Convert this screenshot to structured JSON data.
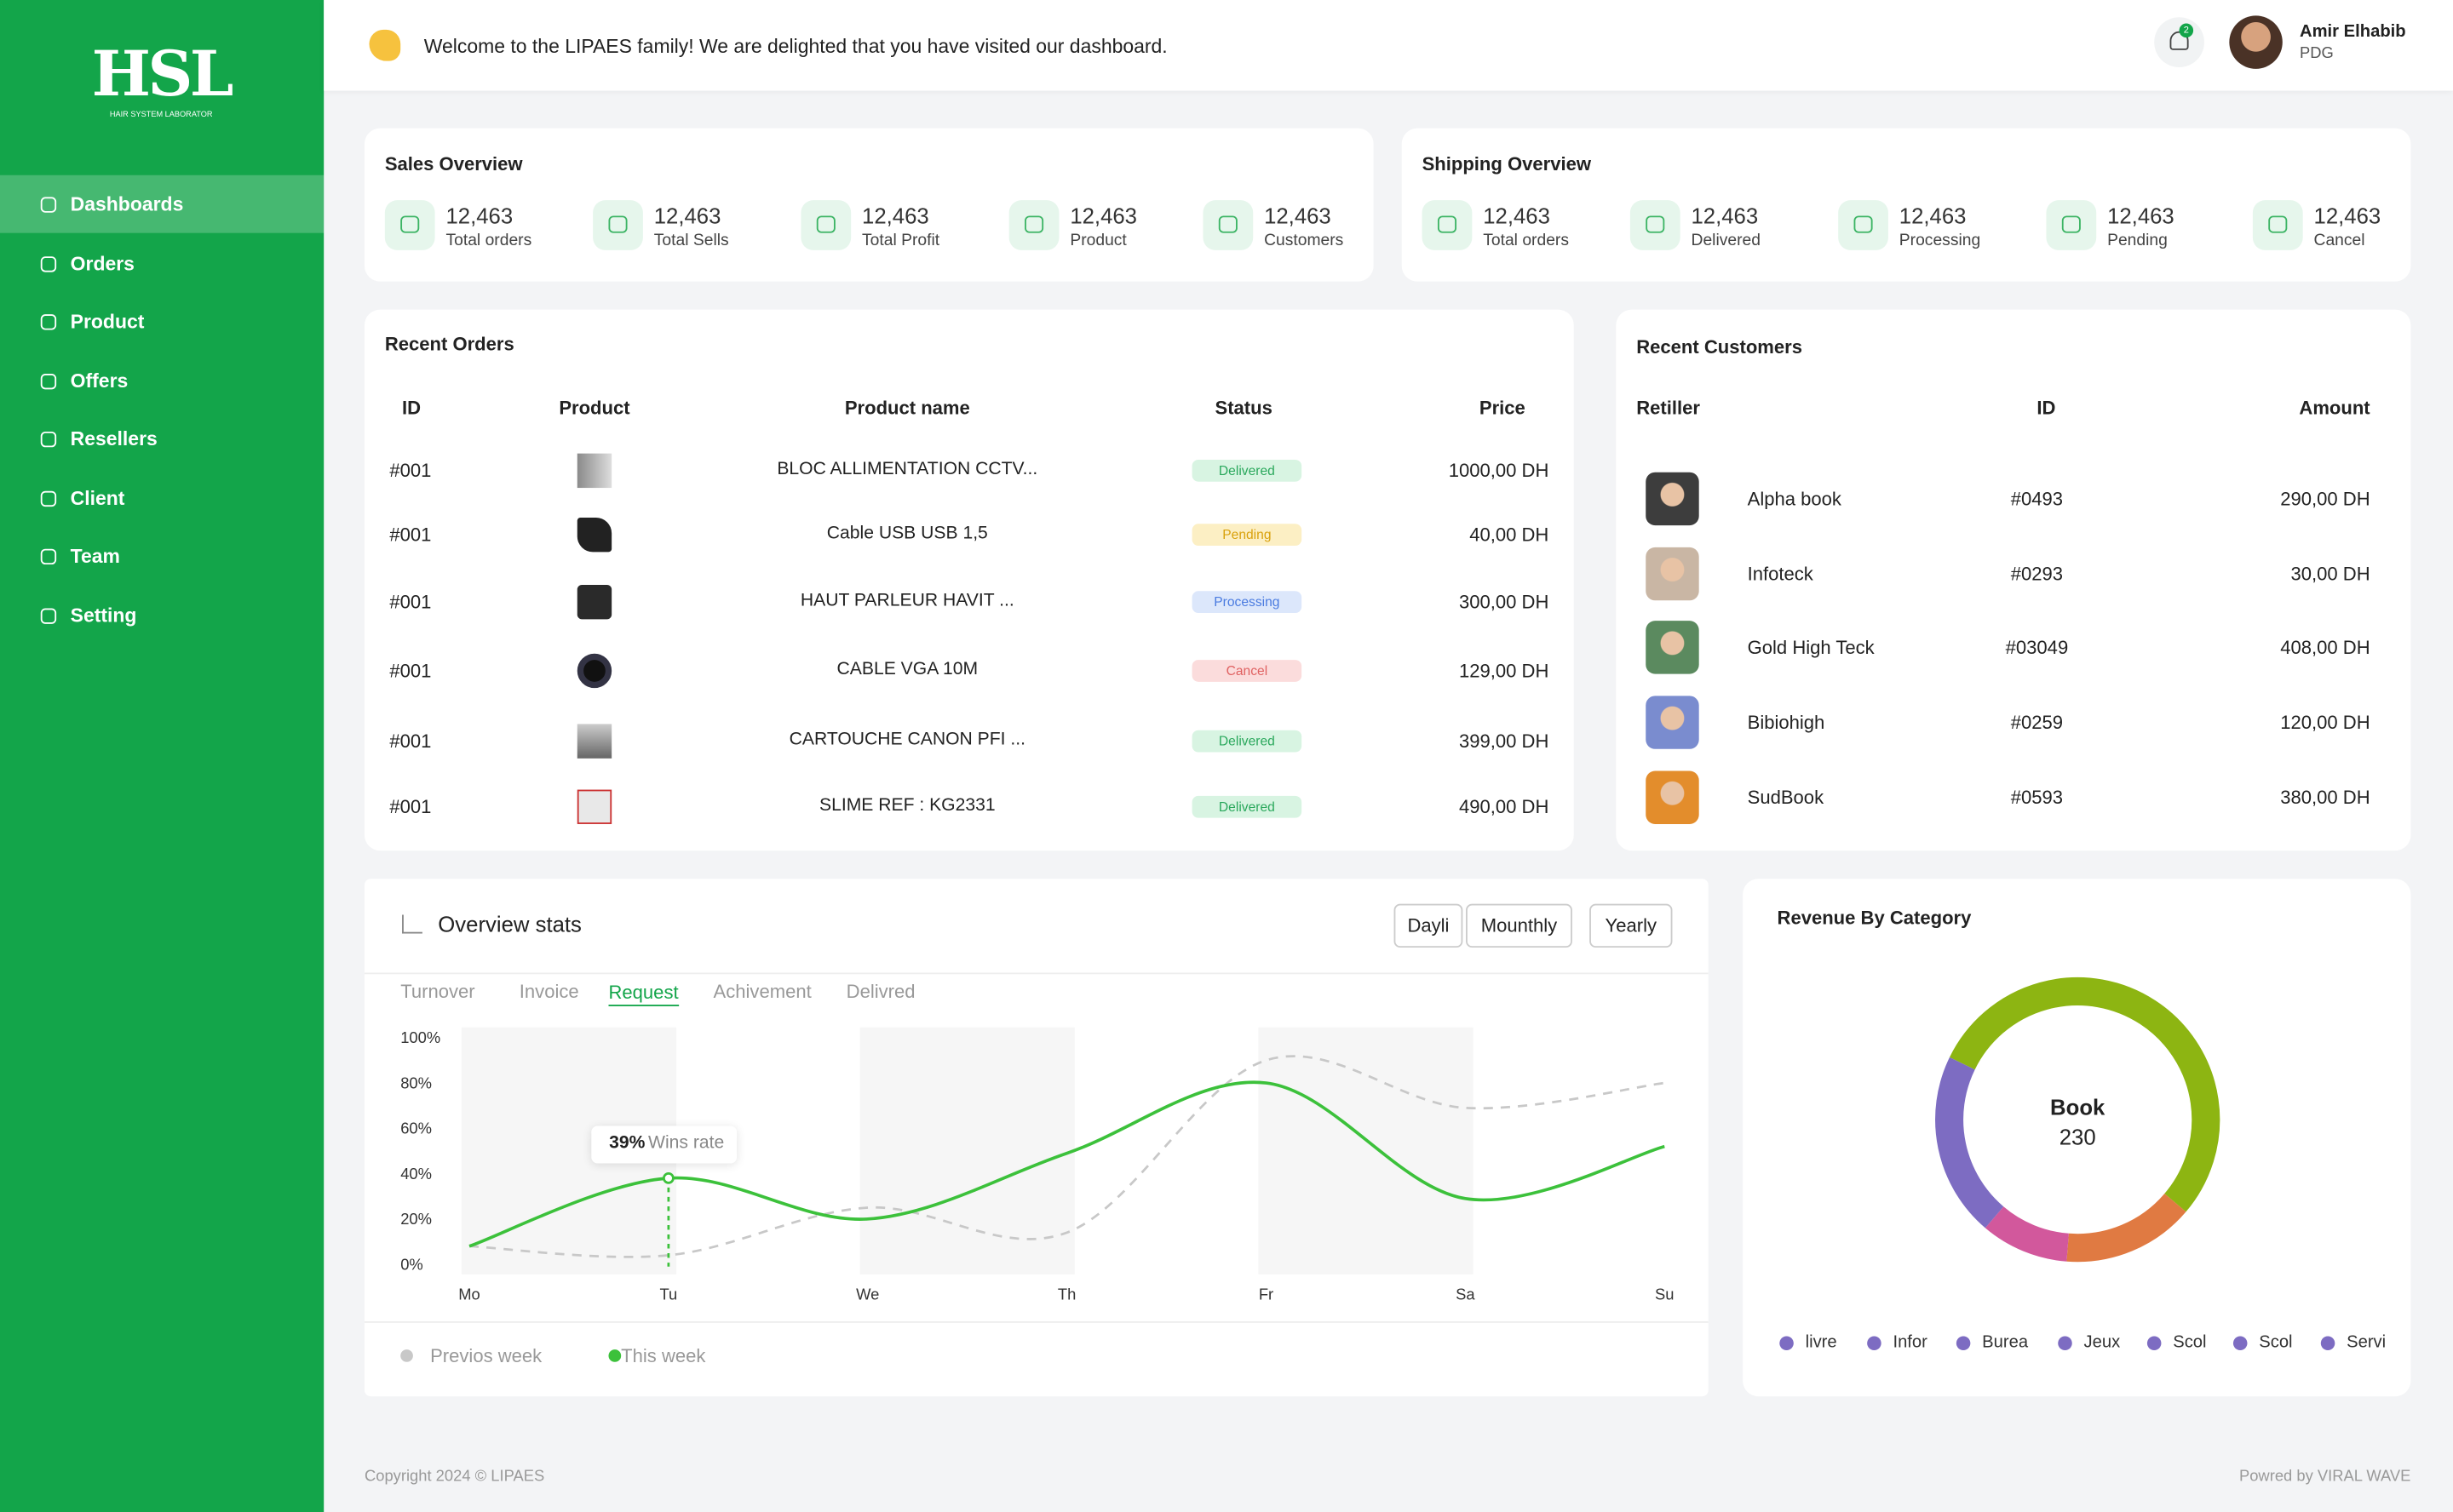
{
  "sidebar": {
    "logo": "HSL",
    "logo_sub": "HAIR SYSTEM LABORATOR",
    "menu": [
      "Dashboards",
      "Orders",
      "Product",
      "Offers",
      "Resellers",
      "Client",
      "Team",
      "Setting"
    ]
  },
  "header": {
    "welcome": "Welcome to the LIPAES family! We are delighted that you have visited our dashboard.",
    "notifications": "2",
    "user_name": "Amir Elhabib",
    "user_role": "PDG"
  },
  "sales_overview": {
    "title": "Sales Overview",
    "items": [
      {
        "value": "12,463",
        "label": "Total orders"
      },
      {
        "value": "12,463",
        "label": "Total Sells"
      },
      {
        "value": "12,463",
        "label": "Total Profit"
      },
      {
        "value": "12,463",
        "label": "Product"
      },
      {
        "value": "12,463",
        "label": "Customers"
      }
    ]
  },
  "shipping_overview": {
    "title": "Shipping Overview",
    "items": [
      {
        "value": "12,463",
        "label": "Total orders"
      },
      {
        "value": "12,463",
        "label": "Delivered"
      },
      {
        "value": "12,463",
        "label": "Processing"
      },
      {
        "value": "12,463",
        "label": "Pending"
      },
      {
        "value": "12,463",
        "label": "Cancel"
      }
    ]
  },
  "recent_orders": {
    "title": "Recent Orders",
    "columns": [
      "ID",
      "Product",
      "Product name",
      "Status",
      "Price"
    ],
    "rows": [
      {
        "id": "#001",
        "name": "BLOC ALLIMENTATION CCTV...",
        "status": {
          "text": "Delivered",
          "color": "#2aa85c",
          "bg": "#d8f4e2"
        },
        "price": "1000,00 DH"
      },
      {
        "id": "#001",
        "name": "Cable USB USB 1,5",
        "status": {
          "text": "Pending",
          "color": "#d9a10c",
          "bg": "#fcefc4"
        },
        "price": "40,00 DH"
      },
      {
        "id": "#001",
        "name": "HAUT PARLEUR HAVIT ...",
        "status": {
          "text": "Processing",
          "color": "#4a7be0",
          "bg": "#dce7fb"
        },
        "price": "300,00 DH"
      },
      {
        "id": "#001",
        "name": "CABLE VGA 10M",
        "status": {
          "text": "Cancel",
          "color": "#e06262",
          "bg": "#fbdcdc"
        },
        "price": "129,00 DH"
      },
      {
        "id": "#001",
        "name": "CARTOUCHE CANON PFI ...",
        "status": {
          "text": "Delivered",
          "color": "#2aa85c",
          "bg": "#d8f4e2"
        },
        "price": "399,00 DH"
      },
      {
        "id": "#001",
        "name": "SLIME REF : KG2331",
        "status": {
          "text": "Delivered",
          "color": "#2aa85c",
          "bg": "#d8f4e2"
        },
        "price": "490,00 DH"
      }
    ]
  },
  "recent_customers": {
    "title": "Recent Customers",
    "columns": [
      "Retiller",
      "ID",
      "Amount"
    ],
    "rows": [
      {
        "name": "Alpha book",
        "id": "#0493",
        "amount": "290,00 DH"
      },
      {
        "name": "Infoteck",
        "id": "#0293",
        "amount": "30,00 DH"
      },
      {
        "name": "Gold High Teck",
        "id": "#03049",
        "amount": "408,00 DH"
      },
      {
        "name": "Bibiohigh",
        "id": "#0259",
        "amount": "120,00 DH"
      },
      {
        "name": "SudBook",
        "id": "#0593",
        "amount": "380,00 DH"
      }
    ]
  },
  "overview_stats": {
    "title": "Overview stats",
    "buttons": [
      "Dayli",
      "Mounthly",
      "Yearly"
    ],
    "tabs": [
      "Turnover",
      "Invoice",
      "Request",
      "Achivement",
      "Delivred"
    ],
    "active_tab": 2,
    "chart_data": {
      "type": "line",
      "categories": [
        "Mo",
        "Tu",
        "We",
        "Th",
        "Fr",
        "Sa",
        "Su"
      ],
      "ylim": [
        0,
        100
      ],
      "yticks": [
        {
          "value": 0,
          "label": "0%"
        },
        {
          "value": 20,
          "label": "20%"
        },
        {
          "value": 40,
          "label": "40%"
        },
        {
          "value": 60,
          "label": "60%"
        },
        {
          "value": 80,
          "label": "80%"
        },
        {
          "value": 100,
          "label": "100%"
        }
      ],
      "series": [
        {
          "name": "Previos week",
          "color": "#c8c8c8",
          "dashed": true,
          "values": [
            9,
            5,
            26,
            15,
            91,
            70,
            81
          ]
        },
        {
          "name": "This week",
          "color": "#3cc13b",
          "values": [
            9,
            39,
            21,
            50,
            81,
            30,
            53
          ]
        }
      ],
      "tooltip": {
        "value": "39%",
        "label": "Wins rate"
      }
    }
  },
  "revenue": {
    "title": "Revenue By Category",
    "chart_data": {
      "type": "donut",
      "values": [
        54,
        15,
        10,
        21
      ],
      "colors": [
        "#8db512",
        "#e07a42",
        "#d2589c",
        "#7d6cc2"
      ],
      "center_label": "Book",
      "center_value": 230,
      "legend": [
        "livre",
        "Infor",
        "Burea",
        "Jeux",
        "Scol",
        "Scol",
        "Servi"
      ],
      "legend_color": "#7d6cc2"
    }
  },
  "footer": {
    "copyright": "Copyright 2024 © LIPAES",
    "powered": "Powred by VIRAL WAVE"
  }
}
